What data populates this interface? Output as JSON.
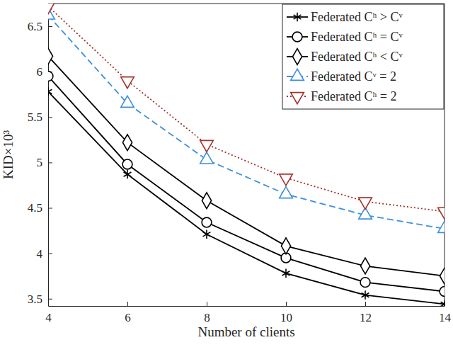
{
  "chart_data": {
    "type": "line",
    "x_label": "Number of clients",
    "y_label": "KID×10³",
    "x": [
      4,
      6,
      8,
      10,
      12,
      14
    ],
    "xlim": [
      4,
      14
    ],
    "xticks": [
      4,
      6,
      8,
      10,
      12,
      14
    ],
    "ylim": [
      3.42,
      6.75
    ],
    "yticks": [
      3.5,
      4,
      4.5,
      5,
      5.5,
      6,
      6.5
    ],
    "grid": false,
    "legend": "top-right",
    "series": [
      {
        "name": "Federated Cʰ > Cᵛ",
        "color": "#000000",
        "marker": "asterisk",
        "line_style": "solid",
        "values": [
          5.78,
          4.87,
          4.21,
          3.78,
          3.54,
          3.44
        ]
      },
      {
        "name": "Federated Cʰ = Cᵛ",
        "color": "#000000",
        "marker": "circle",
        "line_style": "solid",
        "values": [
          5.95,
          4.98,
          4.34,
          3.95,
          3.68,
          3.58
        ]
      },
      {
        "name": "Federated Cʰ < Cᵛ",
        "color": "#000000",
        "marker": "diamond",
        "line_style": "solid",
        "values": [
          6.17,
          5.22,
          4.58,
          4.08,
          3.86,
          3.75
        ]
      },
      {
        "name": "Federated Cᵛ = 2",
        "color": "#3d8fdc",
        "marker": "triangle-up",
        "line_style": "dashed",
        "values": [
          6.62,
          5.65,
          5.03,
          4.65,
          4.42,
          4.27
        ]
      },
      {
        "name": "Federated Cʰ = 2",
        "color": "#a3322a",
        "marker": "triangle-down",
        "line_style": "dotted",
        "values": [
          6.72,
          5.9,
          5.2,
          4.83,
          4.57,
          4.46
        ]
      }
    ]
  }
}
